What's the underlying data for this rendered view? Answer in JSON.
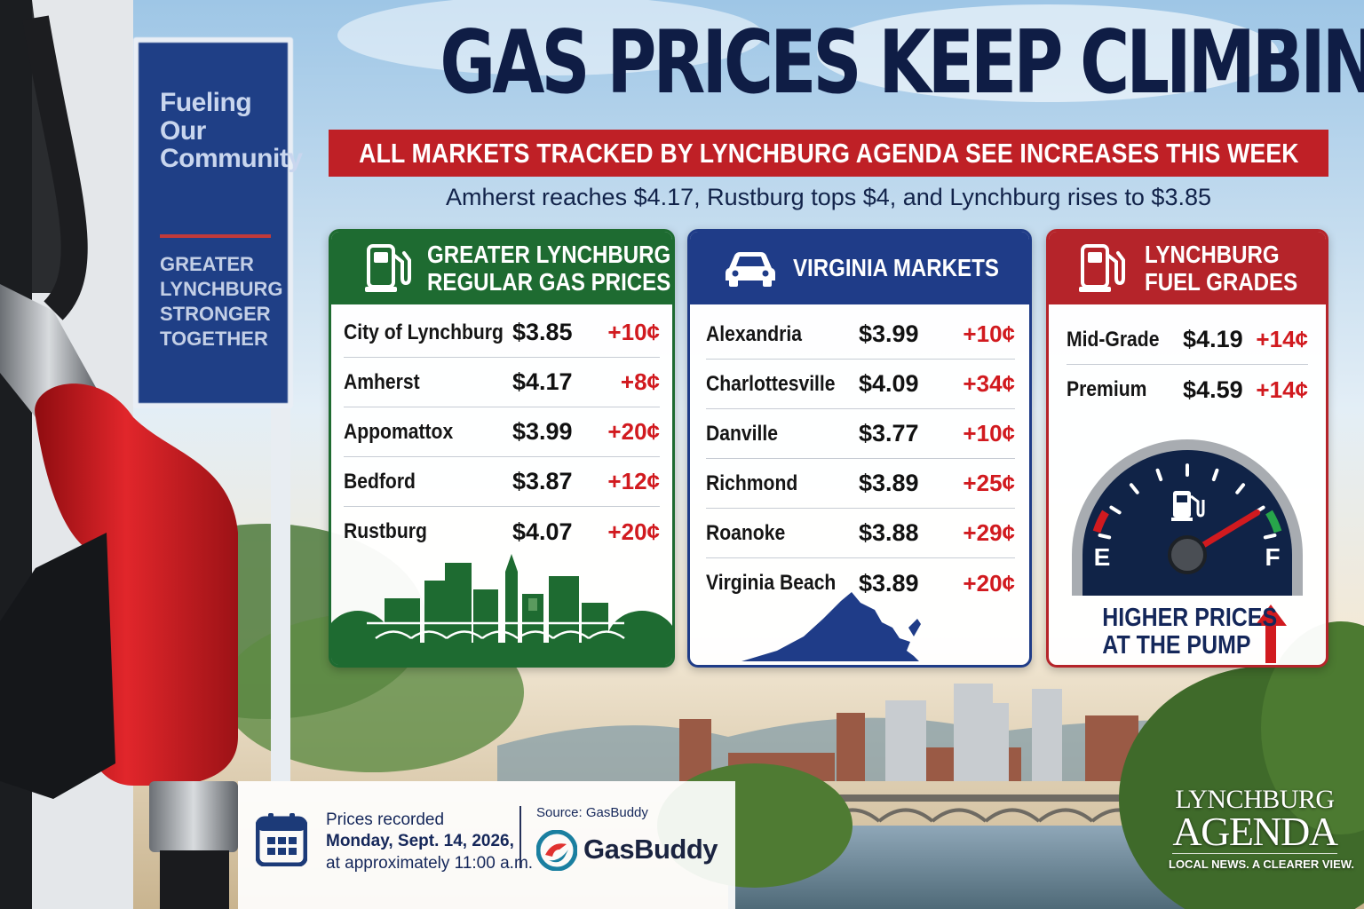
{
  "headline": "GAS PRICES KEEP CLIMBING",
  "subheadline": "ALL MARKETS TRACKED BY LYNCHBURG AGENDA SEE INCREASES THIS WEEK",
  "dek": "Amherst reaches $4.17, Rustburg tops $4, and Lynchburg rises to $3.85",
  "sign": {
    "headline": "Fueling Our Community",
    "subline": "GREATER LYNCHBURG STRONGER TOGETHER"
  },
  "panels": {
    "lynchburg": {
      "title_line1": "GREATER LYNCHBURG",
      "title_line2": "REGULAR GAS PRICES",
      "icon": "fuel-pump-icon",
      "color": "#1e6b31",
      "rows": [
        {
          "name": "City of Lynchburg",
          "price": "$3.85",
          "change": "+10¢"
        },
        {
          "name": "Amherst",
          "price": "$4.17",
          "change": "+8¢"
        },
        {
          "name": "Appomattox",
          "price": "$3.99",
          "change": "+20¢"
        },
        {
          "name": "Bedford",
          "price": "$3.87",
          "change": "+12¢"
        },
        {
          "name": "Rustburg",
          "price": "$4.07",
          "change": "+20¢"
        }
      ]
    },
    "virginia": {
      "title": "VIRGINIA MARKETS",
      "icon": "car-icon",
      "color": "#1f3c88",
      "rows": [
        {
          "name": "Alexandria",
          "price": "$3.99",
          "change": "+10¢"
        },
        {
          "name": "Charlottesville",
          "price": "$4.09",
          "change": "+34¢"
        },
        {
          "name": "Danville",
          "price": "$3.77",
          "change": "+10¢"
        },
        {
          "name": "Richmond",
          "price": "$3.89",
          "change": "+25¢"
        },
        {
          "name": "Roanoke",
          "price": "$3.88",
          "change": "+29¢"
        },
        {
          "name": "Virginia Beach",
          "price": "$3.89",
          "change": "+20¢"
        }
      ]
    },
    "fuel": {
      "title_line1": "LYNCHBURG",
      "title_line2": "FUEL GRADES",
      "icon": "fuel-pump-icon",
      "color": "#b5242a",
      "rows": [
        {
          "name": "Mid-Grade",
          "price": "$4.19",
          "change": "+14¢"
        },
        {
          "name": "Premium",
          "price": "$4.59",
          "change": "+14¢"
        }
      ],
      "gauge": {
        "empty_label": "E",
        "full_label": "F",
        "level": 0.88
      },
      "callout_line1": "HIGHER PRICES",
      "callout_line2": "AT THE PUMP"
    }
  },
  "footer": {
    "recorded_label": "Prices recorded",
    "recorded_date": "Monday, Sept. 14, 2026,",
    "recorded_time": "at approximately 11:00 a.m.",
    "source_label": "Source: GasBuddy",
    "source_logo_text": "GasBuddy"
  },
  "brand": {
    "line1": "LYNCHBURG",
    "line2": "AGENDA",
    "tagline": "LOCAL NEWS. A CLEARER VIEW."
  },
  "colors": {
    "navy": "#0f1d45",
    "red": "#bf2026",
    "green": "#1e6b31",
    "blue": "#1f3c88",
    "change_red": "#d11a1f"
  }
}
